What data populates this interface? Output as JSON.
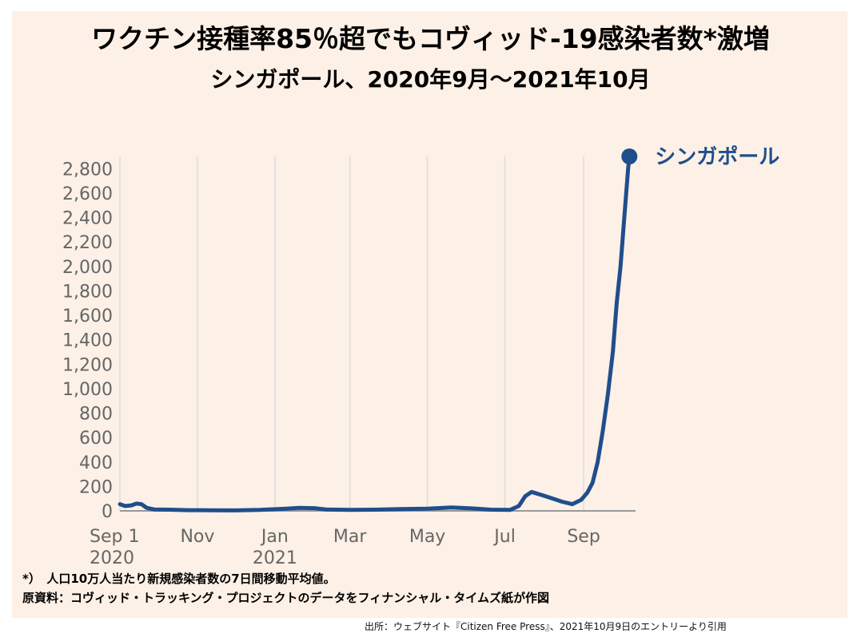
{
  "header": {
    "title": "ワクチン接種率85％超でもコヴィッド-19感染者数*激増",
    "subtitle": "シンガポール、2020年9月～2021年10月"
  },
  "notes": {
    "footnote": "*）　人口10万人当たり新規感染者数の7日間移動平均値。",
    "source_data": "原資料：コヴィッド・トラッキング・プロジェクトのデータをフィナンシャル・タイムズ紙が作図",
    "citation": "出所：ウェブサイト『Citizen Free Press』、2021年10月9日のエントリーより引用"
  },
  "chart_data": {
    "type": "line",
    "series": [
      {
        "name": "シンガポール",
        "color": "#1f4e8c",
        "points": [
          [
            "2020-09-01",
            55
          ],
          [
            "2020-09-05",
            40
          ],
          [
            "2020-09-10",
            45
          ],
          [
            "2020-09-14",
            60
          ],
          [
            "2020-09-18",
            55
          ],
          [
            "2020-09-22",
            25
          ],
          [
            "2020-09-28",
            12
          ],
          [
            "2020-10-10",
            10
          ],
          [
            "2020-10-25",
            6
          ],
          [
            "2020-11-10",
            5
          ],
          [
            "2020-12-01",
            4
          ],
          [
            "2020-12-20",
            8
          ],
          [
            "2021-01-10",
            18
          ],
          [
            "2021-01-20",
            25
          ],
          [
            "2021-02-01",
            22
          ],
          [
            "2021-02-10",
            12
          ],
          [
            "2021-03-01",
            8
          ],
          [
            "2021-03-20",
            10
          ],
          [
            "2021-04-10",
            15
          ],
          [
            "2021-05-01",
            18
          ],
          [
            "2021-05-20",
            28
          ],
          [
            "2021-06-05",
            20
          ],
          [
            "2021-06-20",
            10
          ],
          [
            "2021-07-05",
            8
          ],
          [
            "2021-07-12",
            40
          ],
          [
            "2021-07-17",
            120
          ],
          [
            "2021-07-22",
            155
          ],
          [
            "2021-07-30",
            130
          ],
          [
            "2021-08-08",
            100
          ],
          [
            "2021-08-15",
            75
          ],
          [
            "2021-08-23",
            55
          ],
          [
            "2021-08-30",
            90
          ],
          [
            "2021-09-04",
            150
          ],
          [
            "2021-09-08",
            230
          ],
          [
            "2021-09-12",
            400
          ],
          [
            "2021-09-16",
            650
          ],
          [
            "2021-09-20",
            950
          ],
          [
            "2021-09-24",
            1300
          ],
          [
            "2021-09-27",
            1700
          ],
          [
            "2021-09-30",
            2000
          ],
          [
            "2021-10-03",
            2400
          ],
          [
            "2021-10-06",
            2800
          ],
          [
            "2021-10-07",
            2900
          ]
        ]
      }
    ],
    "x_tick_labels": [
      "Sep 1",
      "Nov",
      "Jan",
      "Mar",
      "May",
      "Jul",
      "Sep"
    ],
    "x_tick_dates": [
      "2020-09-01",
      "2020-11-01",
      "2021-01-01",
      "2021-03-01",
      "2021-05-01",
      "2021-07-01",
      "2021-09-01"
    ],
    "x_year_labels": [
      "2020",
      "2021"
    ],
    "x_year_dates": [
      "2020-09-01",
      "2021-01-01"
    ],
    "y_ticks": [
      0,
      200,
      400,
      600,
      800,
      1000,
      1200,
      1400,
      1600,
      1800,
      2000,
      2200,
      2400,
      2600,
      2800
    ],
    "y_tick_labels": [
      "0",
      "200",
      "400",
      "600",
      "800",
      "1,000",
      "1,200",
      "1,400",
      "1,600",
      "1,800",
      "2,000",
      "2,200",
      "2,400",
      "2,600",
      "2,800"
    ],
    "xlim": [
      "2020-09-01",
      "2021-10-15"
    ],
    "ylim": [
      0,
      2900
    ],
    "grid": "vertical",
    "series_label_position": "end-of-line"
  }
}
